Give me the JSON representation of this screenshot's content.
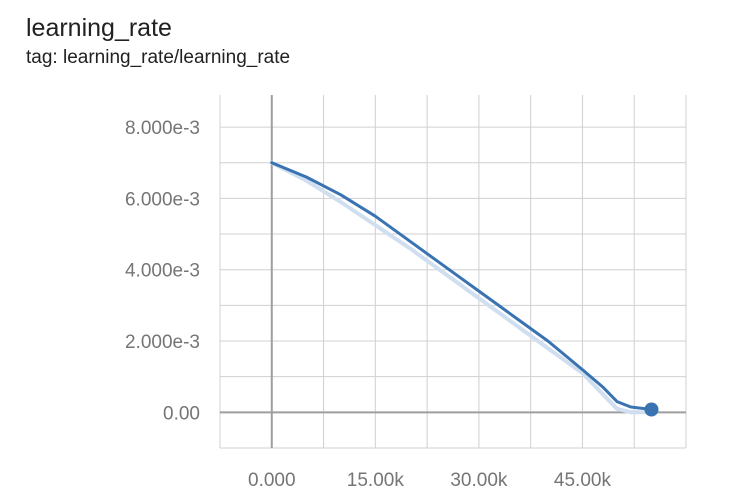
{
  "header": {
    "title": "learning_rate",
    "subtitle": "tag: learning_rate/learning_rate"
  },
  "colors": {
    "line": "#3a73b2",
    "raw_line": "#cfdff0",
    "grid": "#d0d0d0",
    "axis": "#9e9e9e",
    "point": "#3a73b2"
  },
  "chart_data": {
    "type": "line",
    "title": "learning_rate",
    "subtitle": "tag: learning_rate/learning_rate",
    "xlabel": "",
    "ylabel": "",
    "xlim": [
      -7500,
      60000
    ],
    "ylim": [
      -0.001,
      0.0089
    ],
    "x_ticks": [
      0,
      15000,
      30000,
      45000
    ],
    "x_tick_labels": [
      "0.000",
      "15.00k",
      "30.00k",
      "45.00k"
    ],
    "y_ticks": [
      0,
      0.002,
      0.004,
      0.006,
      0.008
    ],
    "y_tick_labels": [
      "0.00",
      "2.000e-3",
      "4.000e-3",
      "6.000e-3",
      "8.000e-3"
    ],
    "grid": true,
    "series": [
      {
        "role": "raw",
        "x": [
          0,
          5000,
          10000,
          15000,
          20000,
          25000,
          30000,
          35000,
          40000,
          45000,
          50000,
          52000,
          55000
        ],
        "y": [
          0.007,
          0.0065,
          0.0059,
          0.00525,
          0.0046,
          0.0039,
          0.0032,
          0.0025,
          0.0018,
          0.0011,
          0.0001,
          0.0,
          0.0
        ]
      },
      {
        "role": "smoothed",
        "x": [
          0,
          5000,
          10000,
          15000,
          20000,
          25000,
          30000,
          35000,
          40000,
          45000,
          48000,
          50000,
          52000,
          55000
        ],
        "y": [
          0.007,
          0.0066,
          0.0061,
          0.0055,
          0.0048,
          0.0041,
          0.0034,
          0.0027,
          0.002,
          0.0012,
          0.0007,
          0.0003,
          0.00015,
          8e-05
        ]
      }
    ],
    "marker": {
      "x": 55000,
      "y": 8e-05
    }
  }
}
